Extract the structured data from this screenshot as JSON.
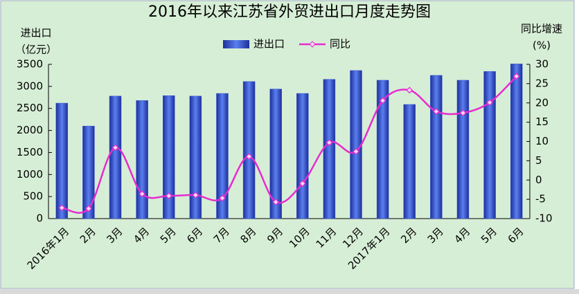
{
  "chart_data": {
    "type": "bar-line",
    "title": "2016年以来江苏省外贸进出口月度走势图",
    "y_label": [
      "进出口",
      "（亿元）"
    ],
    "y2_label": [
      "同比增速",
      "(%)"
    ],
    "categories": [
      "2016年1月",
      "2月",
      "3月",
      "4月",
      "5月",
      "6月",
      "7月",
      "8月",
      "9月",
      "10月",
      "11月",
      "12月",
      "2017年1月",
      "2月",
      "3月",
      "4月",
      "5月",
      "6月"
    ],
    "series": [
      {
        "name": "进出口",
        "type": "bar",
        "color": "#3a5bd0",
        "values": [
          2620,
          2100,
          2780,
          2680,
          2790,
          2780,
          2840,
          3110,
          2940,
          2840,
          3160,
          3360,
          3140,
          2590,
          3250,
          3140,
          3340,
          3510
        ]
      },
      {
        "name": "同比",
        "type": "line",
        "axis": "y2",
        "color": "#e62bd0",
        "values": [
          -7.2,
          -7.4,
          8.4,
          -3.6,
          -4.1,
          -3.9,
          -4.7,
          6.1,
          -5.7,
          -0.9,
          9.7,
          7.4,
          20.6,
          23.3,
          17.8,
          17.4,
          20.1,
          26.9
        ]
      }
    ],
    "ylim": [
      0,
      3500
    ],
    "yticks": [
      0,
      500,
      1000,
      1500,
      2000,
      2500,
      3000,
      3500
    ],
    "y2lim": [
      -10,
      30
    ],
    "y2ticks": [
      -10,
      -5,
      0,
      5,
      10,
      15,
      20,
      25,
      30
    ],
    "legend": "top"
  }
}
